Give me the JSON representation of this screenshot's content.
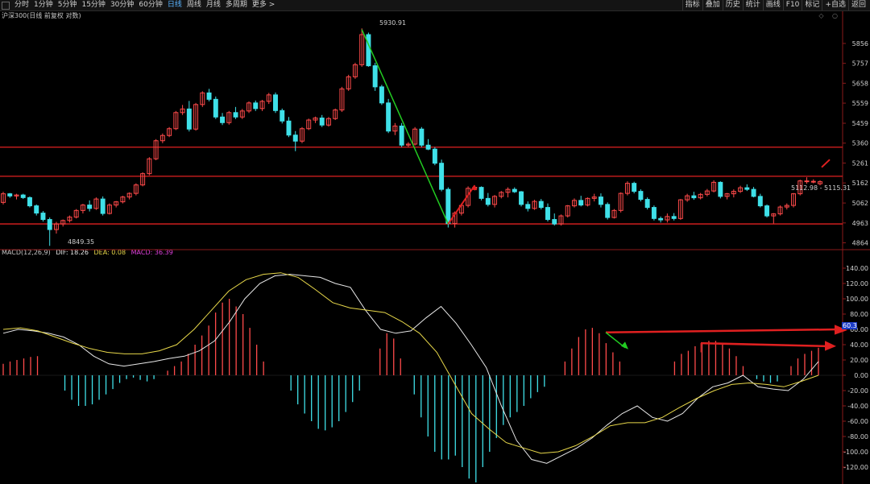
{
  "toolbar": {
    "left_tabs": [
      "分时",
      "1分钟",
      "5分钟",
      "15分钟",
      "30分钟",
      "60分钟",
      "日线",
      "周线",
      "月线",
      "多周期",
      "更多 >"
    ],
    "active_tab": "日线",
    "right_tabs": [
      "指标",
      "叠加",
      "历史",
      "统计",
      "画线",
      "F10",
      "标记",
      "+自选",
      "返回"
    ]
  },
  "symbol": {
    "label": "沪深300(日线 前复权 对数)"
  },
  "price_axis": {
    "ticks": [
      "5856",
      "5757",
      "5658",
      "5559",
      "5459",
      "5360",
      "5261",
      "5162",
      "5062",
      "4963",
      "4864"
    ]
  },
  "macd_axis": {
    "ticks": [
      "140.00",
      "120.00",
      "100.00",
      "80.00",
      "60.00",
      "40.00",
      "20.00",
      "0.00",
      "-20.00",
      "-40.00",
      "-60.00",
      "-80.00",
      "-100.00",
      "-120.00"
    ]
  },
  "annotations": {
    "high_label": "5930.91",
    "low_label": "4849.35",
    "range_label": "5112.98 - 5115.31"
  },
  "macd_legend": {
    "name": "MACD(12,26,9)",
    "dif": "DIF: 18.26",
    "dea": "DEA: 0.08",
    "macd": "MACD: 36.39"
  },
  "macd_value_box": "60.3",
  "colors": {
    "up": "#ff4a4a",
    "down": "#3fe0e8",
    "dif": "#e8e8e8",
    "dea": "#e8d84a",
    "hline": "#e02020",
    "green_arrow": "#22cc22"
  },
  "chart_data": {
    "type": "candlestick",
    "price_ylim": [
      4830,
      5960
    ],
    "candles": [
      [
        5065,
        5118,
        5055,
        5108
      ],
      [
        5108,
        5112,
        5088,
        5097
      ],
      [
        5097,
        5108,
        5080,
        5102
      ],
      [
        5102,
        5108,
        5082,
        5089
      ],
      [
        5089,
        5095,
        5040,
        5048
      ],
      [
        5048,
        5055,
        5000,
        5012
      ],
      [
        5012,
        5022,
        4970,
        4980
      ],
      [
        4980,
        4990,
        4849,
        4930
      ],
      [
        4930,
        4968,
        4910,
        4958
      ],
      [
        4958,
        4980,
        4945,
        4975
      ],
      [
        4975,
        5000,
        4965,
        4992
      ],
      [
        4992,
        5032,
        4985,
        5025
      ],
      [
        5025,
        5058,
        5010,
        5052
      ],
      [
        5052,
        5075,
        5020,
        5035
      ],
      [
        5035,
        5090,
        5028,
        5082
      ],
      [
        5082,
        5095,
        5000,
        5010
      ],
      [
        5010,
        5060,
        5005,
        5052
      ],
      [
        5052,
        5072,
        5040,
        5068
      ],
      [
        5068,
        5098,
        5060,
        5092
      ],
      [
        5092,
        5115,
        5080,
        5110
      ],
      [
        5110,
        5160,
        5100,
        5152
      ],
      [
        5152,
        5215,
        5145,
        5208
      ],
      [
        5208,
        5290,
        5200,
        5282
      ],
      [
        5282,
        5380,
        5275,
        5372
      ],
      [
        5372,
        5408,
        5360,
        5398
      ],
      [
        5398,
        5440,
        5390,
        5432
      ],
      [
        5432,
        5520,
        5425,
        5512
      ],
      [
        5512,
        5550,
        5500,
        5530
      ],
      [
        5530,
        5570,
        5418,
        5430
      ],
      [
        5430,
        5560,
        5422,
        5552
      ],
      [
        5552,
        5618,
        5540,
        5610
      ],
      [
        5610,
        5630,
        5568,
        5578
      ],
      [
        5578,
        5592,
        5480,
        5490
      ],
      [
        5490,
        5510,
        5450,
        5462
      ],
      [
        5462,
        5520,
        5452,
        5512
      ],
      [
        5512,
        5540,
        5480,
        5490
      ],
      [
        5490,
        5530,
        5480,
        5520
      ],
      [
        5520,
        5568,
        5510,
        5560
      ],
      [
        5560,
        5572,
        5520,
        5532
      ],
      [
        5532,
        5575,
        5520,
        5568
      ],
      [
        5568,
        5610,
        5555,
        5600
      ],
      [
        5600,
        5612,
        5510,
        5522
      ],
      [
        5522,
        5532,
        5458,
        5470
      ],
      [
        5470,
        5490,
        5390,
        5400
      ],
      [
        5400,
        5420,
        5320,
        5370
      ],
      [
        5370,
        5440,
        5360,
        5432
      ],
      [
        5432,
        5482,
        5425,
        5475
      ],
      [
        5475,
        5492,
        5460,
        5485
      ],
      [
        5485,
        5500,
        5440,
        5450
      ],
      [
        5450,
        5490,
        5442,
        5482
      ],
      [
        5482,
        5532,
        5475,
        5525
      ],
      [
        5525,
        5640,
        5515,
        5630
      ],
      [
        5630,
        5700,
        5620,
        5690
      ],
      [
        5690,
        5760,
        5680,
        5750
      ],
      [
        5750,
        5931,
        5740,
        5900
      ],
      [
        5900,
        5910,
        5740,
        5745
      ],
      [
        5745,
        5760,
        5620,
        5640
      ],
      [
        5640,
        5650,
        5550,
        5560
      ],
      [
        5560,
        5580,
        5410,
        5420
      ],
      [
        5420,
        5460,
        5400,
        5445
      ],
      [
        5445,
        5460,
        5340,
        5350
      ],
      [
        5350,
        5365,
        5340,
        5355
      ],
      [
        5355,
        5440,
        5348,
        5430
      ],
      [
        5430,
        5440,
        5340,
        5350
      ],
      [
        5350,
        5380,
        5325,
        5330
      ],
      [
        5330,
        5340,
        5250,
        5260
      ],
      [
        5260,
        5278,
        5120,
        5130
      ],
      [
        5130,
        5140,
        4940,
        4960
      ],
      [
        4960,
        5020,
        4940,
        5012
      ],
      [
        5012,
        5060,
        5000,
        5050
      ],
      [
        5050,
        5145,
        5040,
        5135
      ],
      [
        5135,
        5145,
        5125,
        5140
      ],
      [
        5140,
        5145,
        5075,
        5085
      ],
      [
        5085,
        5112,
        5045,
        5055
      ],
      [
        5055,
        5102,
        5040,
        5095
      ],
      [
        5095,
        5122,
        5085,
        5115
      ],
      [
        5115,
        5140,
        5090,
        5130
      ],
      [
        5130,
        5140,
        5112,
        5118
      ],
      [
        5118,
        5122,
        5045,
        5055
      ],
      [
        5055,
        5070,
        5020,
        5035
      ],
      [
        5035,
        5078,
        5028,
        5070
      ],
      [
        5070,
        5082,
        5030,
        5040
      ],
      [
        5040,
        5060,
        4970,
        4980
      ],
      [
        4980,
        5010,
        4950,
        4958
      ],
      [
        4958,
        5005,
        4950,
        4998
      ],
      [
        4998,
        5052,
        4990,
        5048
      ],
      [
        5048,
        5085,
        5040,
        5075
      ],
      [
        5075,
        5098,
        5045,
        5052
      ],
      [
        5052,
        5090,
        5045,
        5085
      ],
      [
        5085,
        5108,
        5070,
        5092
      ],
      [
        5092,
        5110,
        5040,
        5055
      ],
      [
        5055,
        5065,
        4980,
        4990
      ],
      [
        4990,
        5032,
        4985,
        5025
      ],
      [
        5025,
        5115,
        5015,
        5110
      ],
      [
        5110,
        5170,
        5100,
        5160
      ],
      [
        5160,
        5168,
        5110,
        5120
      ],
      [
        5120,
        5130,
        5070,
        5080
      ],
      [
        5080,
        5090,
        5030,
        5040
      ],
      [
        5040,
        5050,
        4975,
        4985
      ],
      [
        4985,
        4995,
        4965,
        4978
      ],
      [
        4978,
        5010,
        4965,
        4995
      ],
      [
        4995,
        5012,
        4975,
        4985
      ],
      [
        4985,
        5082,
        4978,
        5078
      ],
      [
        5078,
        5108,
        5068,
        5098
      ],
      [
        5098,
        5118,
        5078,
        5088
      ],
      [
        5088,
        5112,
        5080,
        5105
      ],
      [
        5105,
        5132,
        5095,
        5122
      ],
      [
        5122,
        5175,
        5115,
        5165
      ],
      [
        5165,
        5170,
        5085,
        5095
      ],
      [
        5095,
        5112,
        5080,
        5108
      ],
      [
        5108,
        5130,
        5090,
        5120
      ],
      [
        5120,
        5148,
        5112,
        5138
      ],
      [
        5138,
        5155,
        5122,
        5130
      ],
      [
        5130,
        5142,
        5090,
        5095
      ],
      [
        5095,
        5108,
        5040,
        5048
      ],
      [
        5048,
        5055,
        4990,
        4998
      ],
      [
        4998,
        5012,
        4960,
        5008
      ],
      [
        5008,
        5050,
        5000,
        5042
      ],
      [
        5042,
        5060,
        5030,
        5050
      ],
      [
        5050,
        5112,
        5040,
        5108
      ],
      [
        5108,
        5178,
        5100,
        5172
      ],
      [
        5172,
        5190,
        5158,
        5172
      ],
      [
        5168,
        5180,
        5160,
        5170
      ],
      [
        5158,
        5175,
        5150,
        5168
      ]
    ],
    "macd_ylim": [
      -140,
      160
    ],
    "macd_hist": [
      15,
      18,
      20,
      22,
      24,
      25,
      0,
      0,
      0,
      -20,
      -32,
      -40,
      -40,
      -38,
      -32,
      -25,
      -18,
      -10,
      -5,
      -3,
      -6,
      -8,
      -5,
      0,
      6,
      12,
      18,
      28,
      40,
      52,
      65,
      82,
      95,
      100,
      90,
      80,
      62,
      40,
      18,
      0,
      0,
      0,
      -20,
      -38,
      -50,
      -60,
      -70,
      -72,
      -68,
      -60,
      -48,
      -35,
      -20,
      0,
      0,
      35,
      55,
      48,
      22,
      0,
      -25,
      -55,
      -80,
      -100,
      -110,
      -110,
      -105,
      -120,
      -135,
      -140,
      -120,
      -100,
      -82,
      -65,
      -55,
      -48,
      -40,
      -30,
      -22,
      -15,
      0,
      0,
      18,
      35,
      50,
      60,
      62,
      55,
      42,
      30,
      18,
      0,
      0,
      0,
      0,
      0,
      0,
      0,
      18,
      28,
      32,
      38,
      42,
      45,
      45,
      40,
      35,
      25,
      12,
      0,
      -5,
      -8,
      -10,
      -8,
      0,
      12,
      22,
      28,
      32,
      36
    ],
    "dif_path": [
      55,
      60,
      58,
      55,
      50,
      40,
      25,
      15,
      12,
      15,
      18,
      22,
      25,
      32,
      45,
      70,
      100,
      120,
      130,
      132,
      130,
      128,
      120,
      115,
      85,
      60,
      55,
      58,
      75,
      90,
      68,
      40,
      10,
      -40,
      -85,
      -110,
      -115,
      -105,
      -95,
      -82,
      -65,
      -50,
      -40,
      -55,
      -60,
      -50,
      -30,
      -15,
      -10,
      0,
      -15,
      -18,
      -20,
      -5,
      18
    ],
    "dea_path": [
      60,
      62,
      58,
      50,
      42,
      35,
      30,
      28,
      28,
      32,
      40,
      60,
      85,
      110,
      125,
      132,
      134,
      128,
      112,
      95,
      88,
      85,
      82,
      70,
      55,
      30,
      -10,
      -50,
      -70,
      -88,
      -95,
      -102,
      -100,
      -92,
      -80,
      -66,
      -62,
      -62,
      -55,
      -42,
      -30,
      -20,
      -12,
      -10,
      -12,
      -15,
      -8,
      0
    ]
  }
}
